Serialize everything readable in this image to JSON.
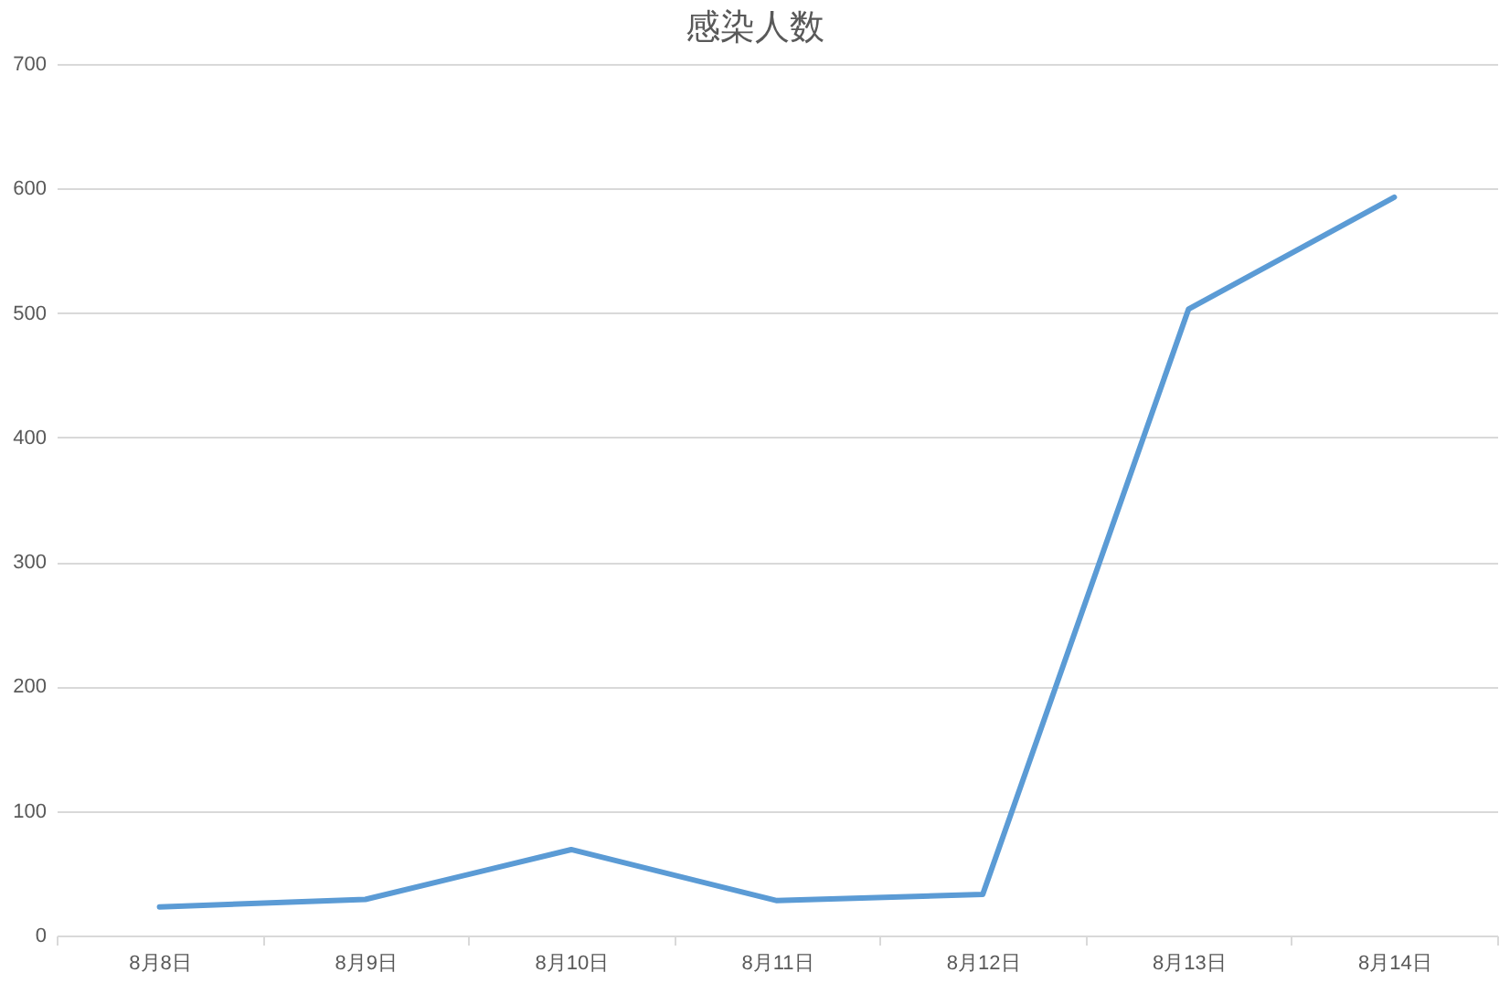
{
  "chart_data": {
    "type": "line",
    "title": "感染人数",
    "categories": [
      "8月8日",
      "8月9日",
      "8月10日",
      "8月11日",
      "8月12日",
      "8月13日",
      "8月14日"
    ],
    "series": [
      {
        "color": "#5b9bd5",
        "values": [
          23,
          29,
          69,
          28,
          33,
          503,
          593
        ]
      }
    ],
    "ylim": [
      0,
      700
    ],
    "yticks": [
      0,
      100,
      200,
      300,
      400,
      500,
      600,
      700
    ],
    "grid": "y"
  }
}
